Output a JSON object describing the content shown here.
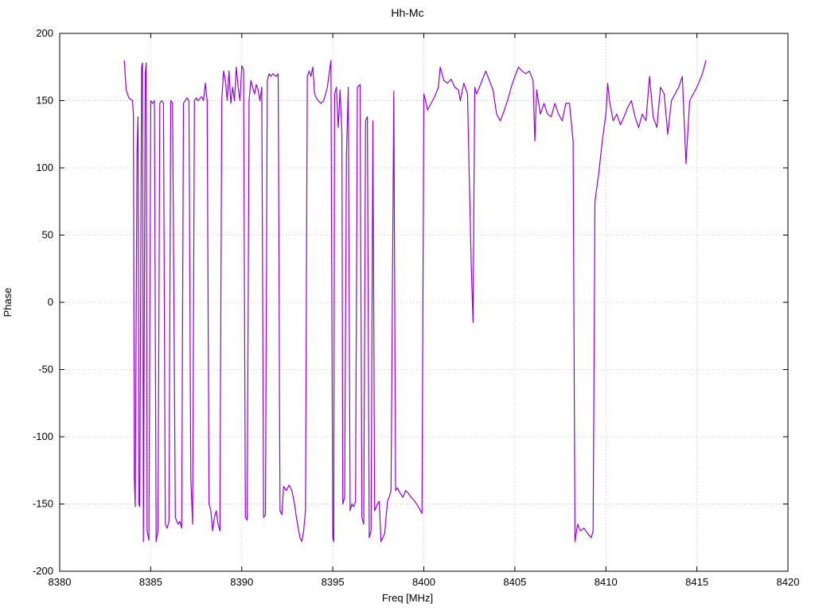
{
  "chart_data": {
    "type": "line",
    "title": "Hh-Mc",
    "xlabel": "Freq [MHz]",
    "ylabel": "Phase",
    "xlim": [
      8380,
      8420
    ],
    "ylim": [
      -200,
      200
    ],
    "xticks": [
      8380,
      8385,
      8390,
      8395,
      8400,
      8405,
      8410,
      8415,
      8420
    ],
    "yticks": [
      -200,
      -150,
      -100,
      -50,
      0,
      50,
      100,
      150,
      200
    ],
    "grid": true,
    "legend": "none",
    "line_color": "#9400d3",
    "background_color": "#ffffff",
    "points": [
      [
        8383.55,
        180
      ],
      [
        8383.65,
        158
      ],
      [
        8383.8,
        152
      ],
      [
        8384.0,
        150
      ],
      [
        8384.05,
        140
      ],
      [
        8384.1,
        -130
      ],
      [
        8384.15,
        -152
      ],
      [
        8384.25,
        112
      ],
      [
        8384.3,
        138
      ],
      [
        8384.35,
        -150
      ],
      [
        8384.4,
        -152
      ],
      [
        8384.5,
        175
      ],
      [
        8384.55,
        178
      ],
      [
        8384.6,
        -178
      ],
      [
        8384.7,
        170
      ],
      [
        8384.75,
        178
      ],
      [
        8384.8,
        -170
      ],
      [
        8384.9,
        -177
      ],
      [
        8385.0,
        150
      ],
      [
        8385.1,
        148
      ],
      [
        8385.2,
        150
      ],
      [
        8385.3,
        -178
      ],
      [
        8385.4,
        -170
      ],
      [
        8385.5,
        148
      ],
      [
        8385.6,
        150
      ],
      [
        8385.7,
        148
      ],
      [
        8385.8,
        -165
      ],
      [
        8385.9,
        -168
      ],
      [
        8386.0,
        -163
      ],
      [
        8386.1,
        150
      ],
      [
        8386.2,
        148
      ],
      [
        8386.35,
        -160
      ],
      [
        8386.5,
        -165
      ],
      [
        8386.6,
        -163
      ],
      [
        8386.7,
        -168
      ],
      [
        8386.8,
        148
      ],
      [
        8386.9,
        150
      ],
      [
        8387.0,
        152
      ],
      [
        8387.1,
        150
      ],
      [
        8387.2,
        -130
      ],
      [
        8387.3,
        -165
      ],
      [
        8387.4,
        150
      ],
      [
        8387.5,
        152
      ],
      [
        8387.6,
        150
      ],
      [
        8387.8,
        153
      ],
      [
        8387.9,
        150
      ],
      [
        8388.0,
        163
      ],
      [
        8388.1,
        150
      ],
      [
        8388.2,
        -150
      ],
      [
        8388.3,
        -155
      ],
      [
        8388.4,
        -170
      ],
      [
        8388.5,
        -160
      ],
      [
        8388.6,
        -155
      ],
      [
        8388.7,
        -165
      ],
      [
        8388.8,
        -170
      ],
      [
        8388.9,
        150
      ],
      [
        8389.0,
        172
      ],
      [
        8389.1,
        165
      ],
      [
        8389.2,
        150
      ],
      [
        8389.3,
        172
      ],
      [
        8389.4,
        148
      ],
      [
        8389.5,
        160
      ],
      [
        8389.6,
        150
      ],
      [
        8389.7,
        175
      ],
      [
        8389.8,
        160
      ],
      [
        8389.9,
        150
      ],
      [
        8390.0,
        176
      ],
      [
        8390.1,
        173
      ],
      [
        8390.2,
        -160
      ],
      [
        8390.3,
        -162
      ],
      [
        8390.4,
        150
      ],
      [
        8390.5,
        165
      ],
      [
        8390.6,
        160
      ],
      [
        8390.7,
        155
      ],
      [
        8390.8,
        162
      ],
      [
        8390.9,
        158
      ],
      [
        8391.0,
        150
      ],
      [
        8391.1,
        160
      ],
      [
        8391.2,
        -160
      ],
      [
        8391.3,
        -158
      ],
      [
        8391.4,
        165
      ],
      [
        8391.5,
        170
      ],
      [
        8391.6,
        168
      ],
      [
        8391.7,
        170
      ],
      [
        8391.9,
        168
      ],
      [
        8392.0,
        170
      ],
      [
        8392.1,
        -155
      ],
      [
        8392.2,
        -158
      ],
      [
        8392.3,
        -137
      ],
      [
        8392.45,
        -140
      ],
      [
        8392.6,
        -136
      ],
      [
        8392.75,
        -140
      ],
      [
        8392.9,
        -150
      ],
      [
        8393.0,
        -160
      ],
      [
        8393.1,
        -168
      ],
      [
        8393.2,
        -175
      ],
      [
        8393.3,
        -178
      ],
      [
        8393.4,
        -170
      ],
      [
        8393.5,
        -155
      ],
      [
        8393.6,
        168
      ],
      [
        8393.7,
        172
      ],
      [
        8393.8,
        168
      ],
      [
        8393.9,
        175
      ],
      [
        8394.0,
        155
      ],
      [
        8394.1,
        152
      ],
      [
        8394.2,
        150
      ],
      [
        8394.35,
        148
      ],
      [
        8394.5,
        150
      ],
      [
        8394.6,
        155
      ],
      [
        8394.7,
        160
      ],
      [
        8394.8,
        170
      ],
      [
        8394.9,
        180
      ],
      [
        8395.0,
        -175
      ],
      [
        8395.05,
        -178
      ],
      [
        8395.1,
        155
      ],
      [
        8395.2,
        160
      ],
      [
        8395.3,
        130
      ],
      [
        8395.4,
        158
      ],
      [
        8395.5,
        125
      ],
      [
        8395.55,
        -150
      ],
      [
        8395.65,
        -145
      ],
      [
        8395.75,
        110
      ],
      [
        8395.85,
        160
      ],
      [
        8395.95,
        -155
      ],
      [
        8396.05,
        -150
      ],
      [
        8396.15,
        -152
      ],
      [
        8396.25,
        -148
      ],
      [
        8396.35,
        160
      ],
      [
        8396.5,
        162
      ],
      [
        8396.6,
        -160
      ],
      [
        8396.7,
        -165
      ],
      [
        8396.8,
        135
      ],
      [
        8396.9,
        138
      ],
      [
        8397.0,
        -175
      ],
      [
        8397.1,
        -170
      ],
      [
        8397.2,
        135
      ],
      [
        8397.3,
        -155
      ],
      [
        8397.45,
        -150
      ],
      [
        8397.55,
        -148
      ],
      [
        8397.65,
        -178
      ],
      [
        8397.75,
        -175
      ],
      [
        8397.85,
        -172
      ],
      [
        8398.0,
        -148
      ],
      [
        8398.1,
        -145
      ],
      [
        8398.2,
        -140
      ],
      [
        8398.35,
        157
      ],
      [
        8398.45,
        -140
      ],
      [
        8398.55,
        -138
      ],
      [
        8398.7,
        -142
      ],
      [
        8398.85,
        -145
      ],
      [
        8399.0,
        -140
      ],
      [
        8399.15,
        -142
      ],
      [
        8399.3,
        -145
      ],
      [
        8399.5,
        -148
      ],
      [
        8399.7,
        -152
      ],
      [
        8399.9,
        -157
      ],
      [
        8400.0,
        155
      ],
      [
        8400.1,
        150
      ],
      [
        8400.2,
        143
      ],
      [
        8400.4,
        148
      ],
      [
        8400.6,
        153
      ],
      [
        8400.8,
        160
      ],
      [
        8400.9,
        175
      ],
      [
        8401.0,
        170
      ],
      [
        8401.1,
        165
      ],
      [
        8401.3,
        163
      ],
      [
        8401.5,
        166
      ],
      [
        8401.7,
        160
      ],
      [
        8401.9,
        158
      ],
      [
        8402.0,
        150
      ],
      [
        8402.2,
        163
      ],
      [
        8402.4,
        155
      ],
      [
        8402.5,
        90
      ],
      [
        8402.6,
        30
      ],
      [
        8402.7,
        -15
      ],
      [
        8402.8,
        160
      ],
      [
        8402.9,
        155
      ],
      [
        8403.0,
        158
      ],
      [
        8403.2,
        165
      ],
      [
        8403.4,
        172
      ],
      [
        8403.6,
        165
      ],
      [
        8403.8,
        158
      ],
      [
        8404.0,
        140
      ],
      [
        8404.2,
        135
      ],
      [
        8404.4,
        142
      ],
      [
        8404.6,
        150
      ],
      [
        8404.8,
        160
      ],
      [
        8405.0,
        168
      ],
      [
        8405.2,
        175
      ],
      [
        8405.4,
        172
      ],
      [
        8405.6,
        170
      ],
      [
        8405.8,
        172
      ],
      [
        8406.0,
        165
      ],
      [
        8406.1,
        120
      ],
      [
        8406.2,
        158
      ],
      [
        8406.4,
        140
      ],
      [
        8406.6,
        148
      ],
      [
        8406.8,
        140
      ],
      [
        8407.0,
        138
      ],
      [
        8407.2,
        148
      ],
      [
        8407.4,
        140
      ],
      [
        8407.6,
        135
      ],
      [
        8407.8,
        148
      ],
      [
        8408.0,
        148
      ],
      [
        8408.2,
        120
      ],
      [
        8408.3,
        -178
      ],
      [
        8408.45,
        -165
      ],
      [
        8408.6,
        -170
      ],
      [
        8408.8,
        -168
      ],
      [
        8409.0,
        -172
      ],
      [
        8409.2,
        -175
      ],
      [
        8409.3,
        -170
      ],
      [
        8409.4,
        75
      ],
      [
        8409.5,
        85
      ],
      [
        8409.6,
        95
      ],
      [
        8409.8,
        120
      ],
      [
        8410.0,
        140
      ],
      [
        8410.1,
        163
      ],
      [
        8410.2,
        150
      ],
      [
        8410.4,
        135
      ],
      [
        8410.6,
        140
      ],
      [
        8410.8,
        132
      ],
      [
        8411.0,
        138
      ],
      [
        8411.2,
        145
      ],
      [
        8411.4,
        150
      ],
      [
        8411.6,
        138
      ],
      [
        8411.8,
        130
      ],
      [
        8412.0,
        140
      ],
      [
        8412.2,
        135
      ],
      [
        8412.4,
        168
      ],
      [
        8412.6,
        138
      ],
      [
        8412.8,
        130
      ],
      [
        8413.0,
        160
      ],
      [
        8413.2,
        155
      ],
      [
        8413.4,
        125
      ],
      [
        8413.6,
        150
      ],
      [
        8413.8,
        155
      ],
      [
        8414.0,
        160
      ],
      [
        8414.2,
        168
      ],
      [
        8414.4,
        103
      ],
      [
        8414.6,
        150
      ],
      [
        8414.8,
        155
      ],
      [
        8415.0,
        160
      ],
      [
        8415.3,
        170
      ],
      [
        8415.5,
        180
      ]
    ]
  }
}
